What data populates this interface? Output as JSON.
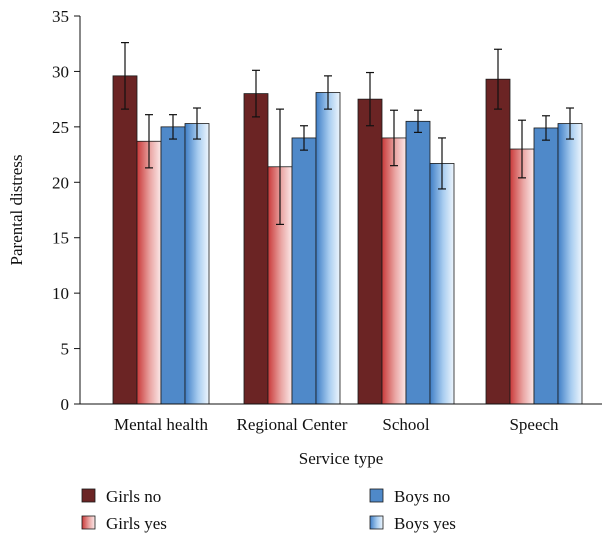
{
  "chart_data": {
    "type": "bar",
    "xlabel": "Service type",
    "ylabel": "Parental distress",
    "ylim": [
      0,
      35
    ],
    "yticks": [
      0,
      5,
      10,
      15,
      20,
      25,
      30,
      35
    ],
    "grid": false,
    "legend_position": "bottom",
    "categories": [
      "Mental health",
      "Regional Center",
      "School",
      "Speech"
    ],
    "series": [
      {
        "name": "Girls no",
        "values": [
          29.6,
          28.0,
          27.5,
          29.3
        ],
        "error": [
          3.0,
          2.1,
          2.4,
          2.7
        ],
        "color": "#6b2424",
        "style": "solid"
      },
      {
        "name": "Girls yes",
        "values": [
          23.7,
          21.4,
          24.0,
          23.0
        ],
        "error": [
          2.4,
          5.2,
          2.5,
          2.6
        ],
        "color": "#e79a98",
        "style": "gradient"
      },
      {
        "name": "Boys no",
        "values": [
          25.0,
          24.0,
          25.5,
          24.9
        ],
        "error": [
          1.1,
          1.1,
          1.0,
          1.1
        ],
        "color": "#4f89c9",
        "style": "solid"
      },
      {
        "name": "Boys yes",
        "values": [
          25.3,
          28.1,
          21.7,
          25.3
        ],
        "error": [
          1.4,
          1.5,
          2.3,
          1.4
        ],
        "color": "#7fb1e3",
        "style": "gradient"
      }
    ]
  }
}
